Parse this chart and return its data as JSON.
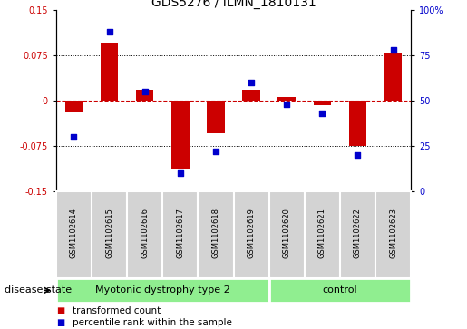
{
  "title": "GDS5276 / ILMN_1810131",
  "samples": [
    "GSM1102614",
    "GSM1102615",
    "GSM1102616",
    "GSM1102617",
    "GSM1102618",
    "GSM1102619",
    "GSM1102620",
    "GSM1102621",
    "GSM1102622",
    "GSM1102623"
  ],
  "red_bars": [
    -0.02,
    0.095,
    0.018,
    -0.115,
    -0.055,
    0.018,
    0.005,
    -0.008,
    -0.075,
    0.078
  ],
  "blue_squares": [
    30,
    88,
    55,
    10,
    22,
    60,
    48,
    43,
    20,
    78
  ],
  "group_ranges": [
    [
      0,
      6,
      "Myotonic dystrophy type 2"
    ],
    [
      6,
      10,
      "control"
    ]
  ],
  "ylim_left": [
    -0.15,
    0.15
  ],
  "ylim_right": [
    0,
    100
  ],
  "yticks_left": [
    -0.15,
    -0.075,
    0,
    0.075,
    0.15
  ],
  "yticks_right": [
    0,
    25,
    50,
    75,
    100
  ],
  "ytick_labels_left": [
    "-0.15",
    "-0.075",
    "0",
    "0.075",
    "0.15"
  ],
  "ytick_labels_right": [
    "0",
    "25",
    "50",
    "75",
    "100%"
  ],
  "red_color": "#cc0000",
  "blue_color": "#0000cc",
  "dotted_lines": [
    -0.075,
    0.075
  ],
  "disease_state_label": "disease state",
  "legend_items": [
    "transformed count",
    "percentile rank within the sample"
  ],
  "label_area_color": "#d3d3d3",
  "group_area_color": "#90ee90",
  "title_fontsize": 10,
  "tick_fontsize": 7,
  "sample_fontsize": 6,
  "group_fontsize": 8,
  "legend_fontsize": 7.5,
  "disease_state_fontsize": 8
}
